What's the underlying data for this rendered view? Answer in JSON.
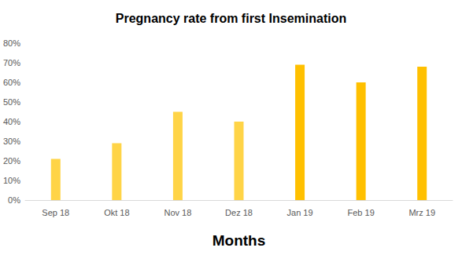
{
  "chart_data": {
    "type": "bar",
    "title": "Pregnancy rate from first Insemination",
    "x_label": "Months",
    "categories": [
      "Sep 18",
      "Okt 18",
      "Nov 18",
      "Dez 18",
      "Jan 19",
      "Feb 19",
      "Mrz 19"
    ],
    "values": [
      21,
      29,
      45,
      40,
      69,
      60,
      68
    ],
    "colors": [
      "#ffd447",
      "#ffd447",
      "#ffd447",
      "#ffd447",
      "#ffc000",
      "#ffc000",
      "#ffc000"
    ],
    "ylim": [
      0,
      80
    ],
    "yticks": [
      {
        "value": 0,
        "label": "0%"
      },
      {
        "value": 10,
        "label": "10%"
      },
      {
        "value": 20,
        "label": "20%"
      },
      {
        "value": 30,
        "label": "30%"
      },
      {
        "value": 40,
        "label": "40%"
      },
      {
        "value": 50,
        "label": "50%"
      },
      {
        "value": 60,
        "label": "60%"
      },
      {
        "value": 70,
        "label": "70%"
      },
      {
        "value": 80,
        "label": "80%"
      }
    ],
    "grid": false
  }
}
